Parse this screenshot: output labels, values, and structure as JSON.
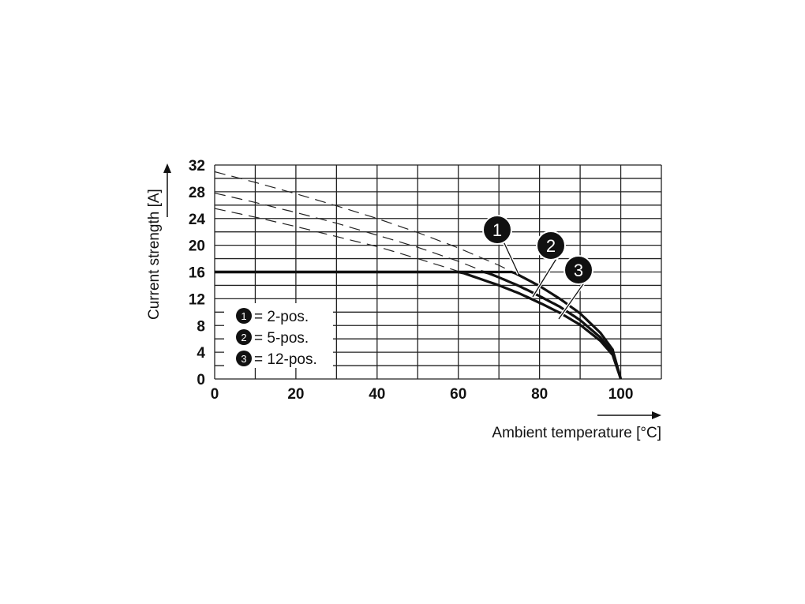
{
  "chart_data": {
    "type": "line",
    "title": "",
    "xlabel": "Ambient temperature [°C]",
    "ylabel": "Current strength [A]",
    "xlim": [
      0,
      110
    ],
    "ylim": [
      0,
      32
    ],
    "x_ticks": [
      "0",
      "20",
      "40",
      "60",
      "80",
      "100"
    ],
    "y_ticks": [
      "0",
      "4",
      "8",
      "12",
      "16",
      "20",
      "24",
      "28",
      "32"
    ],
    "grid": true,
    "limit_current": 16,
    "x": [
      0,
      10,
      20,
      30,
      40,
      50,
      60,
      70,
      75,
      80,
      85,
      90,
      95,
      98,
      100
    ],
    "series": [
      {
        "name": "2-pos.",
        "marker": "1",
        "values": [
          31.0,
          29.4,
          27.7,
          25.9,
          24.0,
          21.9,
          19.6,
          17.0,
          15.5,
          13.9,
          12.0,
          9.8,
          6.9,
          4.4,
          0
        ]
      },
      {
        "name": "5-pos.",
        "marker": "2",
        "values": [
          27.8,
          26.4,
          24.9,
          23.3,
          21.5,
          19.7,
          17.6,
          15.2,
          13.9,
          12.4,
          10.8,
          8.8,
          6.2,
          3.9,
          0
        ]
      },
      {
        "name": "12-pos.",
        "marker": "3",
        "values": [
          25.5,
          24.2,
          22.8,
          21.3,
          19.8,
          18.0,
          16.1,
          14.0,
          12.8,
          11.4,
          9.9,
          8.1,
          5.7,
          3.6,
          0
        ]
      }
    ],
    "legend": {
      "placement": "bottom-left",
      "entries": [
        {
          "marker": "1",
          "text": "= 2-pos."
        },
        {
          "marker": "2",
          "text": "= 5-pos."
        },
        {
          "marker": "3",
          "text": "= 12-pos."
        }
      ]
    }
  }
}
